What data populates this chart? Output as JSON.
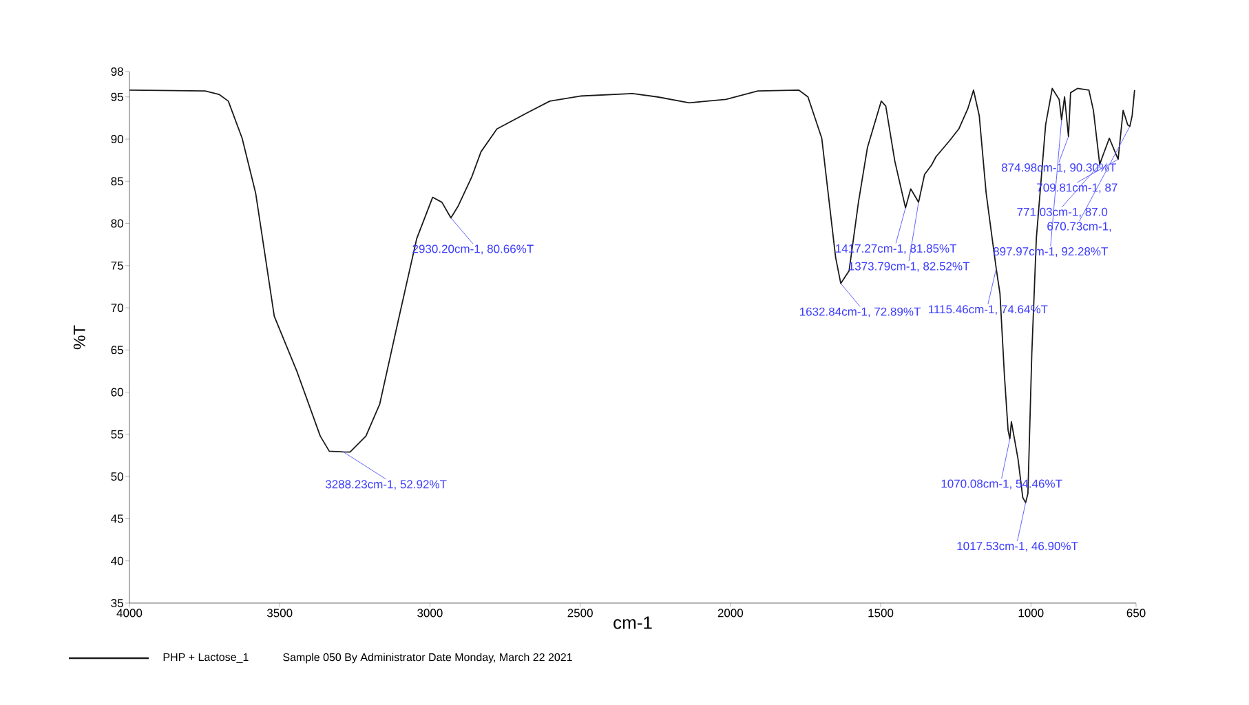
{
  "chart_data": {
    "type": "line",
    "xlabel": "cm-1",
    "ylabel": "%T",
    "xlim": [
      4000,
      650
    ],
    "xticks": [
      4000,
      3500,
      3000,
      2500,
      2000,
      1500,
      1000,
      650
    ],
    "ylim": [
      35,
      98
    ],
    "yticks": [
      35,
      40,
      45,
      50,
      55,
      60,
      65,
      70,
      75,
      80,
      85,
      90,
      95,
      98
    ],
    "legend": "bottom",
    "x": [
      4000,
      3748,
      3702,
      3671,
      3625,
      3580,
      3518,
      3442,
      3365,
      3335,
      3288.23,
      3266,
      3213,
      3167,
      3106,
      3044,
      2991,
      2960,
      2930.2,
      2907,
      2861,
      2830,
      2777,
      2677,
      2601,
      2500,
      2326,
      2243,
      2137,
      2015,
      1909,
      1772,
      1742,
      1696,
      1650,
      1632.84,
      1605,
      1574,
      1544,
      1498,
      1483,
      1453,
      1417.27,
      1400,
      1373.79,
      1354,
      1331,
      1316,
      1271,
      1240,
      1210,
      1191,
      1172,
      1149,
      1130,
      1115.46,
      1103,
      1088,
      1076,
      1070.08,
      1065,
      1043,
      1027,
      1017.53,
      1010,
      997,
      982,
      951,
      929,
      906,
      897.97,
      888,
      874.98,
      868,
      845,
      807,
      792,
      771.03,
      761,
      739,
      709.81,
      693,
      678,
      670.73,
      663,
      655
    ],
    "series": [
      {
        "name": "PHP + Lactose_1",
        "color": "#1a1a1a",
        "values": [
          95.8,
          95.7,
          95.3,
          94.5,
          90.1,
          83.6,
          69.0,
          62.4,
          54.8,
          53.0,
          52.92,
          52.9,
          54.8,
          58.6,
          68.4,
          78.2,
          83.1,
          82.5,
          80.66,
          82.0,
          85.5,
          88.5,
          91.2,
          93.1,
          94.5,
          95.1,
          95.4,
          95.0,
          94.3,
          94.7,
          95.7,
          95.8,
          95.0,
          90.1,
          76.0,
          72.89,
          74.4,
          82.5,
          89.0,
          94.5,
          93.9,
          87.4,
          81.85,
          84.1,
          82.52,
          85.8,
          86.9,
          87.9,
          89.8,
          91.2,
          93.6,
          95.8,
          92.8,
          83.6,
          78.5,
          74.64,
          71.7,
          61.9,
          55.5,
          54.46,
          56.5,
          52.1,
          47.5,
          46.9,
          48.0,
          64.6,
          78.2,
          91.7,
          96.0,
          94.7,
          92.28,
          95.0,
          90.3,
          95.5,
          96.0,
          95.8,
          93.4,
          87.0,
          88.0,
          90.1,
          87.6,
          93.4,
          91.7,
          91.5,
          92.8,
          95.8
        ]
      }
    ],
    "annotations": [
      {
        "text": "3288.23cm-1, 52.92%T",
        "x": 3288.23,
        "y": 52.92
      },
      {
        "text": "2930.20cm-1, 80.66%T",
        "x": 2930.2,
        "y": 80.66
      },
      {
        "text": "1632.84cm-1, 72.89%T",
        "x": 1632.84,
        "y": 72.89
      },
      {
        "text": "1417.27cm-1, 81.85%T",
        "x": 1417.27,
        "y": 81.85
      },
      {
        "text": "1373.79cm-1, 82.52%T",
        "x": 1373.79,
        "y": 82.52
      },
      {
        "text": "1115.46cm-1, 74.64%T",
        "x": 1115.46,
        "y": 74.64
      },
      {
        "text": "1070.08cm-1, 54.46%T",
        "x": 1070.08,
        "y": 54.46
      },
      {
        "text": "1017.53cm-1, 46.90%T",
        "x": 1017.53,
        "y": 46.9
      },
      {
        "text": "897.97cm-1, 92.28%T",
        "x": 897.97,
        "y": 92.28
      },
      {
        "text": "874.98cm-1, 90.30%T",
        "x": 874.98,
        "y": 90.3
      },
      {
        "text": "709.81cm-1, 87",
        "x": 709.81,
        "y": 87.6
      },
      {
        "text": "771.03cm-1, 87.0",
        "x": 771.03,
        "y": 87.0
      },
      {
        "text": "670.73cm-1,",
        "x": 670.73,
        "y": 91.5
      },
      "Sample 050 By Administrator Date Monday, March 22 2021"
    ]
  }
}
